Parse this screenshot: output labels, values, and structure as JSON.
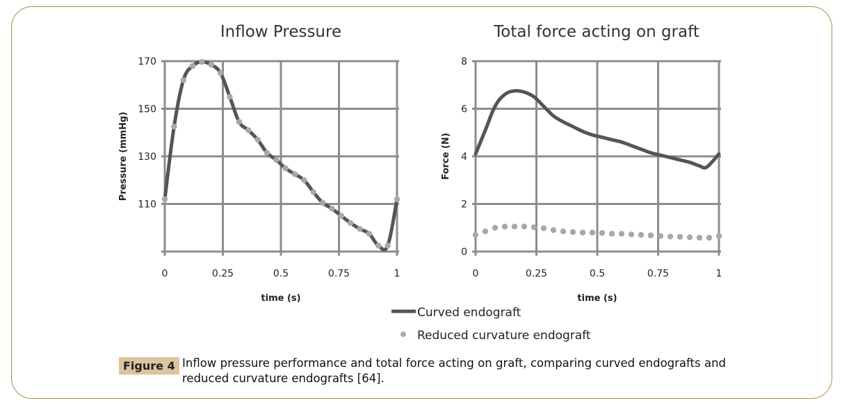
{
  "figure": {
    "label": "Figure 4",
    "caption": "Inflow pressure performance and total force acting on graft, comparing curved endografts and reduced curvature endografts [64]."
  },
  "legend": {
    "items": [
      {
        "name": "Curved endograft",
        "style": "solid-line",
        "color": "#555555"
      },
      {
        "name": "Reduced curvature endograft",
        "style": "dots",
        "color": "#aaaaaa"
      }
    ]
  },
  "chart_data": [
    {
      "type": "line",
      "title": "Inflow Pressure",
      "xlabel": "time (s)",
      "ylabel": "Pressure (mmHg)",
      "xlim": [
        0,
        1
      ],
      "ylim": [
        90,
        170
      ],
      "xticks": [
        "0",
        "0.25",
        "0.5",
        "0.75",
        "1"
      ],
      "xtick_values": [
        0,
        0.25,
        0.5,
        0.75,
        1
      ],
      "yticks": [
        "",
        "110",
        "130",
        "150",
        "170"
      ],
      "ytick_values": [
        90,
        110,
        130,
        150,
        170
      ],
      "grid": true,
      "series": [
        {
          "name": "Curved endograft",
          "x": [
            0,
            0.04,
            0.08,
            0.12,
            0.16,
            0.2,
            0.24,
            0.28,
            0.32,
            0.36,
            0.4,
            0.44,
            0.48,
            0.52,
            0.56,
            0.6,
            0.64,
            0.68,
            0.72,
            0.76,
            0.8,
            0.84,
            0.88,
            0.92,
            0.96,
            1
          ],
          "y": [
            112,
            142.5,
            162,
            168,
            169.7,
            168.5,
            165,
            155,
            144.5,
            141,
            137,
            131.5,
            128.5,
            125,
            122.5,
            120,
            115,
            110.5,
            108,
            105,
            102,
            99.5,
            97.5,
            92.5,
            92.5,
            112
          ]
        },
        {
          "name": "Reduced curvature endograft",
          "x": [
            0,
            0.04,
            0.08,
            0.12,
            0.16,
            0.2,
            0.24,
            0.28,
            0.32,
            0.36,
            0.4,
            0.44,
            0.48,
            0.52,
            0.56,
            0.6,
            0.64,
            0.68,
            0.72,
            0.76,
            0.8,
            0.84,
            0.88,
            0.92,
            0.96,
            1
          ],
          "y": [
            112,
            142.5,
            162,
            168,
            169.7,
            168.5,
            165,
            155,
            144.5,
            141,
            137,
            131.5,
            128.5,
            125,
            122.5,
            120,
            115,
            110.5,
            108,
            105,
            102,
            99.5,
            97.5,
            92.5,
            92.5,
            112
          ]
        }
      ]
    },
    {
      "type": "line",
      "title": "Total force acting on graft",
      "xlabel": "time (s)",
      "ylabel": "Force (N)",
      "xlim": [
        0,
        1
      ],
      "ylim": [
        0,
        8
      ],
      "xticks": [
        "0",
        "0.25",
        "0.5",
        "0.75",
        "1"
      ],
      "xtick_values": [
        0,
        0.25,
        0.5,
        0.75,
        1
      ],
      "yticks": [
        "0",
        "2",
        "4",
        "6",
        "8"
      ],
      "ytick_values": [
        0,
        2,
        4,
        6,
        8
      ],
      "grid": true,
      "series": [
        {
          "name": "Curved endograft",
          "x": [
            0,
            0.04,
            0.08,
            0.12,
            0.16,
            0.2,
            0.24,
            0.28,
            0.32,
            0.36,
            0.4,
            0.44,
            0.48,
            0.52,
            0.56,
            0.6,
            0.64,
            0.68,
            0.72,
            0.76,
            0.8,
            0.84,
            0.88,
            0.92,
            0.95,
            1
          ],
          "y": [
            4.1,
            5.1,
            6.1,
            6.6,
            6.75,
            6.7,
            6.5,
            6.1,
            5.7,
            5.45,
            5.25,
            5.05,
            4.9,
            4.8,
            4.7,
            4.6,
            4.45,
            4.3,
            4.15,
            4.05,
            3.95,
            3.85,
            3.75,
            3.6,
            3.55,
            4.1
          ]
        },
        {
          "name": "Reduced curvature endograft",
          "x": [
            0,
            0.04,
            0.08,
            0.12,
            0.16,
            0.2,
            0.24,
            0.28,
            0.32,
            0.36,
            0.4,
            0.44,
            0.48,
            0.52,
            0.56,
            0.6,
            0.64,
            0.68,
            0.72,
            0.76,
            0.8,
            0.84,
            0.88,
            0.92,
            0.96,
            1
          ],
          "y": [
            0.7,
            0.85,
            1.0,
            1.05,
            1.05,
            1.05,
            1.02,
            0.98,
            0.9,
            0.85,
            0.82,
            0.8,
            0.8,
            0.78,
            0.75,
            0.75,
            0.72,
            0.7,
            0.68,
            0.65,
            0.63,
            0.62,
            0.6,
            0.58,
            0.58,
            0.65
          ]
        }
      ]
    }
  ]
}
